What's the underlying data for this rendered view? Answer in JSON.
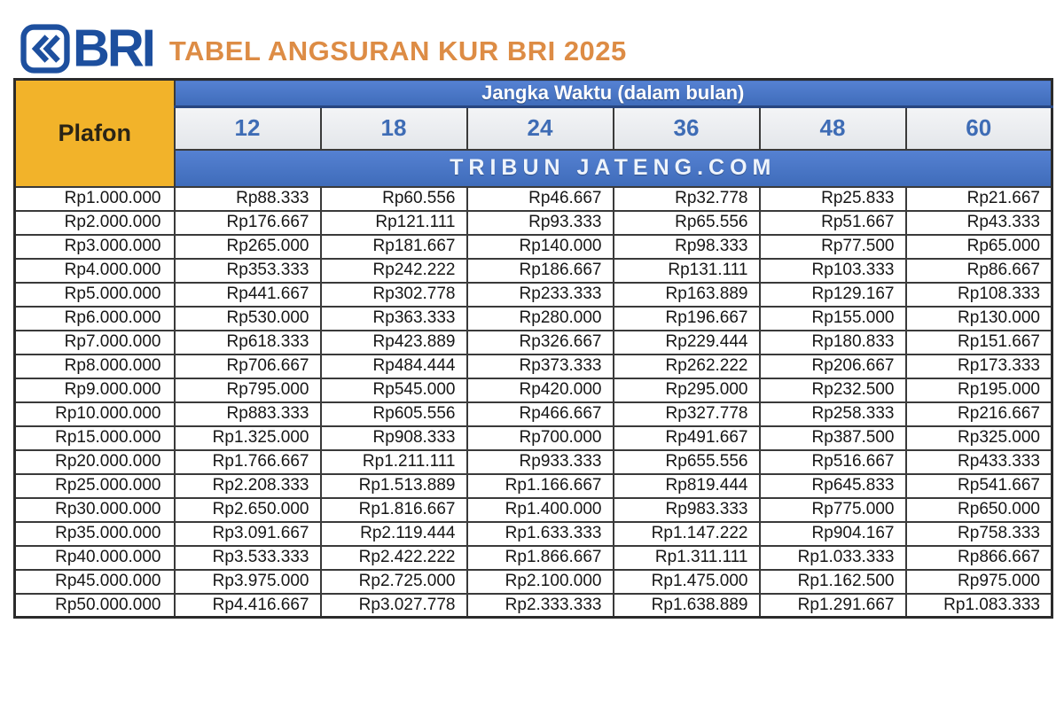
{
  "header": {
    "logo_text": "BRI",
    "title": "TABEL ANGSURAN KUR BRI 2025"
  },
  "table": {
    "group_header": "Jangka Waktu (dalam bulan)",
    "watermark": "TRIBUN JATENG.COM"
  },
  "colors": {
    "header_blue": "#4472C4",
    "plafon_yellow": "#F2B32A",
    "title_orange": "#DD8C45",
    "logo_blue": "#1D4F9E",
    "tenor_text_blue": "#3E6CB5",
    "cell_light_gray": "#E9EBEF",
    "border_dark": "#3A3A3A"
  },
  "chart_data": {
    "type": "table",
    "title": "TABEL ANGSURAN KUR BRI 2025",
    "group_header": "Jangka Waktu (dalam bulan)",
    "columns": [
      "Plafon",
      "12",
      "18",
      "24",
      "36",
      "48",
      "60"
    ],
    "rows": [
      [
        "Rp1.000.000",
        "Rp88.333",
        "Rp60.556",
        "Rp46.667",
        "Rp32.778",
        "Rp25.833",
        "Rp21.667"
      ],
      [
        "Rp2.000.000",
        "Rp176.667",
        "Rp121.111",
        "Rp93.333",
        "Rp65.556",
        "Rp51.667",
        "Rp43.333"
      ],
      [
        "Rp3.000.000",
        "Rp265.000",
        "Rp181.667",
        "Rp140.000",
        "Rp98.333",
        "Rp77.500",
        "Rp65.000"
      ],
      [
        "Rp4.000.000",
        "Rp353.333",
        "Rp242.222",
        "Rp186.667",
        "Rp131.111",
        "Rp103.333",
        "Rp86.667"
      ],
      [
        "Rp5.000.000",
        "Rp441.667",
        "Rp302.778",
        "Rp233.333",
        "Rp163.889",
        "Rp129.167",
        "Rp108.333"
      ],
      [
        "Rp6.000.000",
        "Rp530.000",
        "Rp363.333",
        "Rp280.000",
        "Rp196.667",
        "Rp155.000",
        "Rp130.000"
      ],
      [
        "Rp7.000.000",
        "Rp618.333",
        "Rp423.889",
        "Rp326.667",
        "Rp229.444",
        "Rp180.833",
        "Rp151.667"
      ],
      [
        "Rp8.000.000",
        "Rp706.667",
        "Rp484.444",
        "Rp373.333",
        "Rp262.222",
        "Rp206.667",
        "Rp173.333"
      ],
      [
        "Rp9.000.000",
        "Rp795.000",
        "Rp545.000",
        "Rp420.000",
        "Rp295.000",
        "Rp232.500",
        "Rp195.000"
      ],
      [
        "Rp10.000.000",
        "Rp883.333",
        "Rp605.556",
        "Rp466.667",
        "Rp327.778",
        "Rp258.333",
        "Rp216.667"
      ],
      [
        "Rp15.000.000",
        "Rp1.325.000",
        "Rp908.333",
        "Rp700.000",
        "Rp491.667",
        "Rp387.500",
        "Rp325.000"
      ],
      [
        "Rp20.000.000",
        "Rp1.766.667",
        "Rp1.211.111",
        "Rp933.333",
        "Rp655.556",
        "Rp516.667",
        "Rp433.333"
      ],
      [
        "Rp25.000.000",
        "Rp2.208.333",
        "Rp1.513.889",
        "Rp1.166.667",
        "Rp819.444",
        "Rp645.833",
        "Rp541.667"
      ],
      [
        "Rp30.000.000",
        "Rp2.650.000",
        "Rp1.816.667",
        "Rp1.400.000",
        "Rp983.333",
        "Rp775.000",
        "Rp650.000"
      ],
      [
        "Rp35.000.000",
        "Rp3.091.667",
        "Rp2.119.444",
        "Rp1.633.333",
        "Rp1.147.222",
        "Rp904.167",
        "Rp758.333"
      ],
      [
        "Rp40.000.000",
        "Rp3.533.333",
        "Rp2.422.222",
        "Rp1.866.667",
        "Rp1.311.111",
        "Rp1.033.333",
        "Rp866.667"
      ],
      [
        "Rp45.000.000",
        "Rp3.975.000",
        "Rp2.725.000",
        "Rp2.100.000",
        "Rp1.475.000",
        "Rp1.162.500",
        "Rp975.000"
      ],
      [
        "Rp50.000.000",
        "Rp4.416.667",
        "Rp3.027.778",
        "Rp2.333.333",
        "Rp1.638.889",
        "Rp1.291.667",
        "Rp1.083.333"
      ]
    ]
  }
}
